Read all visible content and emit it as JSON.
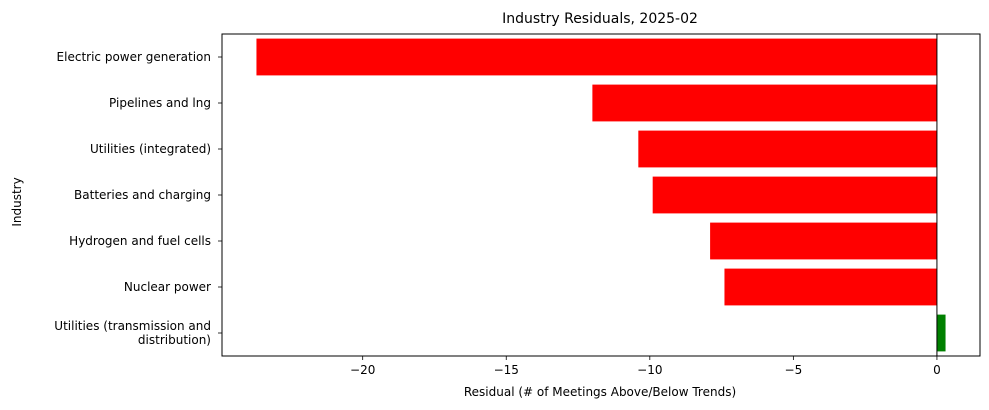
{
  "chart_data": {
    "type": "bar",
    "orientation": "horizontal",
    "title": "Industry Residuals, 2025-02",
    "xlabel": "Residual (# of Meetings Above/Below Trends)",
    "ylabel": "Industry",
    "categories": [
      "Electric power generation",
      "Pipelines and lng",
      "Utilities (integrated)",
      "Batteries and charging",
      "Hydrogen and fuel cells",
      "Nuclear power",
      "Utilities (transmission and distribution)"
    ],
    "category_lines": [
      [
        "Electric power generation"
      ],
      [
        "Pipelines and lng"
      ],
      [
        "Utilities (integrated)"
      ],
      [
        "Batteries and charging"
      ],
      [
        "Hydrogen and fuel cells"
      ],
      [
        "Nuclear power"
      ],
      [
        "Utilities (transmission and",
        "distribution)"
      ]
    ],
    "values": [
      -23.7,
      -12.0,
      -10.4,
      -9.9,
      -7.9,
      -7.4,
      0.3
    ],
    "xlim": [
      -24.9,
      1.5
    ],
    "xticks": [
      -20,
      -15,
      -10,
      -5,
      0
    ],
    "xtick_labels": [
      "−20",
      "−15",
      "−10",
      "−5",
      "0"
    ],
    "zero_line": true,
    "grid": false,
    "colors": {
      "negative": "#ff0000",
      "positive": "#008000",
      "zero_line": "#000000"
    }
  }
}
